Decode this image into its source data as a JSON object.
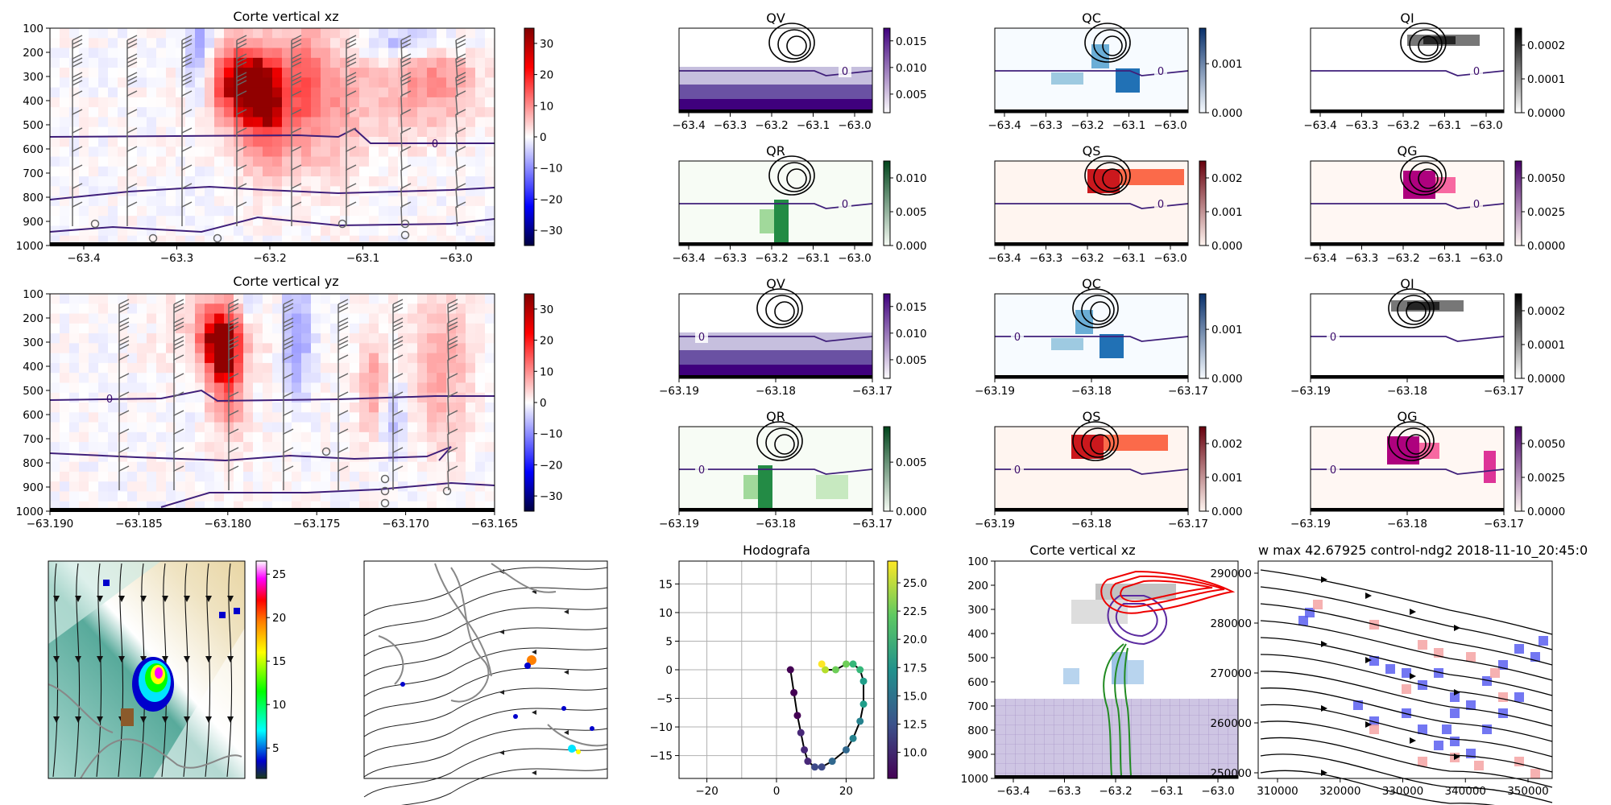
{
  "figure": {
    "suptitle": "w max 42.67925 control-ndg2 2018-11-10_20:45:0"
  },
  "chart_data": [
    {
      "id": "xz-w",
      "type": "heatmap",
      "title": "Corte vertical xz",
      "xlim": [
        -63.44,
        -62.95
      ],
      "ylim": [
        1000,
        100
      ],
      "xticks": [
        "−63.4",
        "−63.3",
        "−63.2",
        "−63.1",
        "−63.0"
      ],
      "yticks": [
        "100",
        "200",
        "300",
        "400",
        "500",
        "600",
        "700",
        "800",
        "900",
        "1000"
      ],
      "cbar_ticks": [
        "30",
        "20",
        "10",
        "0",
        "−10",
        "−20",
        "−30"
      ],
      "cbar_range": [
        -35,
        35
      ],
      "contour_label": "0"
    },
    {
      "id": "yz-w",
      "type": "heatmap",
      "title": "Corte vertical yz",
      "xlim": [
        -63.1905,
        -63.165
      ],
      "ylim": [
        1000,
        100
      ],
      "xticks": [
        "−63.190",
        "−63.185",
        "−63.180",
        "−63.175",
        "−63.170",
        "−63.165"
      ],
      "yticks": [
        "100",
        "200",
        "300",
        "400",
        "500",
        "600",
        "700",
        "800",
        "900",
        "1000"
      ],
      "cbar_ticks": [
        "30",
        "20",
        "10",
        "0",
        "−10",
        "−20",
        "−30"
      ],
      "cbar_range": [
        -35,
        35
      ],
      "contour_label": "0"
    },
    {
      "id": "xz-qv",
      "type": "heatmap",
      "title": "QV",
      "xticks": [
        "−63.4",
        "−63.3",
        "−63.2",
        "−63.1",
        "−63.0"
      ],
      "cbar_ticks": [
        "0.015",
        "0.010",
        "0.005"
      ],
      "contour_label": "0"
    },
    {
      "id": "xz-qc",
      "type": "heatmap",
      "title": "QC",
      "xticks": [
        "−63.4",
        "−63.3",
        "−63.2",
        "−63.1",
        "−63.0"
      ],
      "cbar_ticks": [
        "0.001",
        "0.000"
      ],
      "contour_label": "0"
    },
    {
      "id": "xz-qi",
      "type": "heatmap",
      "title": "QI",
      "xticks": [
        "−63.4",
        "−63.3",
        "−63.2",
        "−63.1",
        "−63.0"
      ],
      "cbar_ticks": [
        "0.0002",
        "0.0001",
        "0.0000"
      ],
      "contour_label": "0"
    },
    {
      "id": "xz-qr",
      "type": "heatmap",
      "title": "QR",
      "xticks": [
        "−63.4",
        "−63.3",
        "−63.2",
        "−63.1",
        "−63.0"
      ],
      "cbar_ticks": [
        "0.010",
        "0.005",
        "0.000"
      ],
      "contour_label": "0"
    },
    {
      "id": "xz-qs",
      "type": "heatmap",
      "title": "QS",
      "xticks": [
        "−63.4",
        "−63.3",
        "−63.2",
        "−63.1",
        "−63.0"
      ],
      "cbar_ticks": [
        "0.002",
        "0.001",
        "0.000"
      ],
      "contour_label": "0"
    },
    {
      "id": "xz-qg",
      "type": "heatmap",
      "title": "QG",
      "xticks": [
        "−63.4",
        "−63.3",
        "−63.2",
        "−63.1",
        "−63.0"
      ],
      "cbar_ticks": [
        "0.0050",
        "0.0025",
        "0.0000"
      ],
      "contour_label": "0"
    },
    {
      "id": "yz-qv",
      "type": "heatmap",
      "title": "QV",
      "xticks": [
        "−63.19",
        "−63.18",
        "−63.17"
      ],
      "cbar_ticks": [
        "0.015",
        "0.010",
        "0.005"
      ],
      "contour_label": "0"
    },
    {
      "id": "yz-qc",
      "type": "heatmap",
      "title": "QC",
      "xticks": [
        "−63.19",
        "−63.18",
        "−63.17"
      ],
      "cbar_ticks": [
        "0.001",
        "0.000"
      ],
      "contour_label": "0"
    },
    {
      "id": "yz-qi",
      "type": "heatmap",
      "title": "QI",
      "xticks": [
        "−63.19",
        "−63.18",
        "−63.17"
      ],
      "cbar_ticks": [
        "0.0002",
        "0.0001",
        "0.0000"
      ],
      "contour_label": "0"
    },
    {
      "id": "yz-qr",
      "type": "heatmap",
      "title": "QR",
      "xticks": [
        "−63.19",
        "−63.18",
        "−63.17"
      ],
      "cbar_ticks": [
        "0.005",
        "0.000"
      ],
      "contour_label": "0"
    },
    {
      "id": "yz-qs",
      "type": "heatmap",
      "title": "QS",
      "xticks": [
        "−63.19",
        "−63.18",
        "−63.17"
      ],
      "cbar_ticks": [
        "0.002",
        "0.001",
        "0.000"
      ],
      "contour_label": "0"
    },
    {
      "id": "yz-qg",
      "type": "heatmap",
      "title": "QG",
      "xticks": [
        "−63.19",
        "−63.18",
        "−63.17"
      ],
      "cbar_ticks": [
        "0.0050",
        "0.0025",
        "0.0000"
      ],
      "contour_label": "0"
    },
    {
      "id": "map-zoom",
      "type": "heatmap",
      "title": "",
      "cbar_ticks": [
        "25",
        "20",
        "15",
        "10",
        "5"
      ]
    },
    {
      "id": "map-wide",
      "type": "heatmap",
      "title": ""
    },
    {
      "id": "hodograph",
      "type": "line",
      "title": "Hodografa",
      "xlim": [
        -28,
        28
      ],
      "ylim": [
        -19,
        19
      ],
      "xticks": [
        "−20",
        "0",
        "20"
      ],
      "yticks": [
        "15",
        "10",
        "5",
        "0",
        "−5",
        "−10",
        "−15"
      ],
      "grid": true,
      "cbar_ticks": [
        "25.0",
        "22.5",
        "20.0",
        "17.5",
        "15.0",
        "12.5",
        "10.0"
      ],
      "cbar_range": [
        8,
        27
      ],
      "points": {
        "u": [
          4,
          5,
          6,
          7,
          8,
          9,
          11,
          13,
          16,
          20,
          22,
          24,
          25,
          25,
          24,
          22,
          20,
          17,
          14,
          13
        ],
        "v": [
          0,
          -4,
          -8,
          -11,
          -14,
          -16,
          -17,
          -17,
          -16,
          -14,
          -12,
          -9,
          -6,
          -2,
          0,
          1,
          1,
          0,
          0,
          1
        ],
        "speed": [
          8,
          8.5,
          9,
          9.5,
          10,
          11,
          12,
          13,
          14,
          15,
          16,
          17,
          18,
          19,
          20,
          21,
          22,
          23,
          24,
          26
        ]
      }
    },
    {
      "id": "xz-hydro",
      "type": "heatmap",
      "title": "Corte vertical xz",
      "xticks": [
        "−63.4",
        "−63.3",
        "−63.2",
        "−63.1",
        "−63.0"
      ],
      "yticks": [
        "100",
        "200",
        "300",
        "400",
        "500",
        "600",
        "700",
        "800",
        "900",
        "1000"
      ]
    },
    {
      "id": "plan-view",
      "type": "heatmap",
      "title": "",
      "xticks": [
        "310000",
        "320000",
        "330000",
        "340000",
        "350000"
      ],
      "yticks": [
        "290000",
        "280000",
        "270000",
        "260000",
        "250000"
      ]
    }
  ]
}
